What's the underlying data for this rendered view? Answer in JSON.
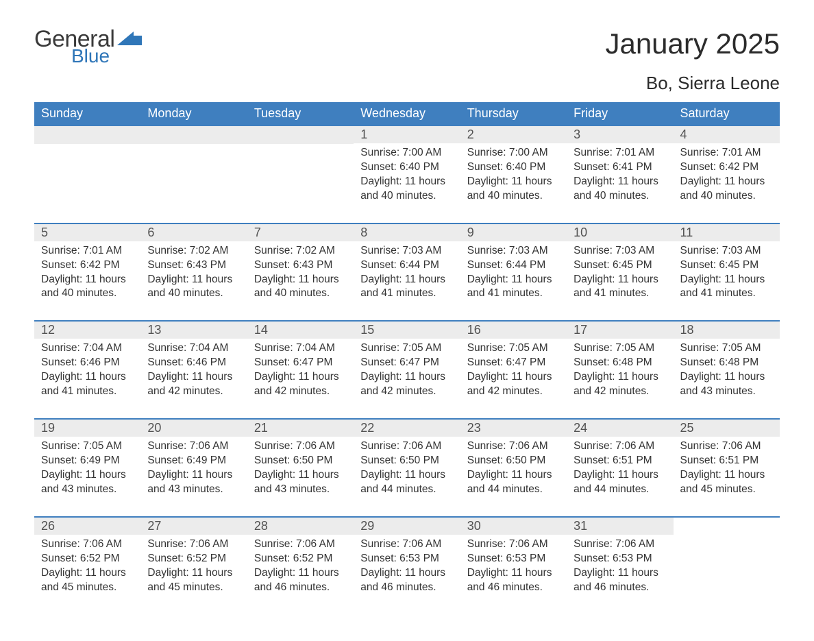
{
  "logo": {
    "word1": "General",
    "word2": "Blue",
    "icon_color": "#2f76b8"
  },
  "title": "January 2025",
  "subtitle": "Bo, Sierra Leone",
  "header_bg": "#3f7fbf",
  "header_fg": "#ffffff",
  "daynum_bg": "#ececec",
  "row_divider_color": "#3f7fbf",
  "weekdays": [
    "Sunday",
    "Monday",
    "Tuesday",
    "Wednesday",
    "Thursday",
    "Friday",
    "Saturday"
  ],
  "weeks": [
    [
      null,
      null,
      null,
      {
        "n": 1,
        "sunrise": "7:00 AM",
        "sunset": "6:40 PM",
        "daylight": "11 hours and 40 minutes."
      },
      {
        "n": 2,
        "sunrise": "7:00 AM",
        "sunset": "6:40 PM",
        "daylight": "11 hours and 40 minutes."
      },
      {
        "n": 3,
        "sunrise": "7:01 AM",
        "sunset": "6:41 PM",
        "daylight": "11 hours and 40 minutes."
      },
      {
        "n": 4,
        "sunrise": "7:01 AM",
        "sunset": "6:42 PM",
        "daylight": "11 hours and 40 minutes."
      }
    ],
    [
      {
        "n": 5,
        "sunrise": "7:01 AM",
        "sunset": "6:42 PM",
        "daylight": "11 hours and 40 minutes."
      },
      {
        "n": 6,
        "sunrise": "7:02 AM",
        "sunset": "6:43 PM",
        "daylight": "11 hours and 40 minutes."
      },
      {
        "n": 7,
        "sunrise": "7:02 AM",
        "sunset": "6:43 PM",
        "daylight": "11 hours and 40 minutes."
      },
      {
        "n": 8,
        "sunrise": "7:03 AM",
        "sunset": "6:44 PM",
        "daylight": "11 hours and 41 minutes."
      },
      {
        "n": 9,
        "sunrise": "7:03 AM",
        "sunset": "6:44 PM",
        "daylight": "11 hours and 41 minutes."
      },
      {
        "n": 10,
        "sunrise": "7:03 AM",
        "sunset": "6:45 PM",
        "daylight": "11 hours and 41 minutes."
      },
      {
        "n": 11,
        "sunrise": "7:03 AM",
        "sunset": "6:45 PM",
        "daylight": "11 hours and 41 minutes."
      }
    ],
    [
      {
        "n": 12,
        "sunrise": "7:04 AM",
        "sunset": "6:46 PM",
        "daylight": "11 hours and 41 minutes."
      },
      {
        "n": 13,
        "sunrise": "7:04 AM",
        "sunset": "6:46 PM",
        "daylight": "11 hours and 42 minutes."
      },
      {
        "n": 14,
        "sunrise": "7:04 AM",
        "sunset": "6:47 PM",
        "daylight": "11 hours and 42 minutes."
      },
      {
        "n": 15,
        "sunrise": "7:05 AM",
        "sunset": "6:47 PM",
        "daylight": "11 hours and 42 minutes."
      },
      {
        "n": 16,
        "sunrise": "7:05 AM",
        "sunset": "6:47 PM",
        "daylight": "11 hours and 42 minutes."
      },
      {
        "n": 17,
        "sunrise": "7:05 AM",
        "sunset": "6:48 PM",
        "daylight": "11 hours and 42 minutes."
      },
      {
        "n": 18,
        "sunrise": "7:05 AM",
        "sunset": "6:48 PM",
        "daylight": "11 hours and 43 minutes."
      }
    ],
    [
      {
        "n": 19,
        "sunrise": "7:05 AM",
        "sunset": "6:49 PM",
        "daylight": "11 hours and 43 minutes."
      },
      {
        "n": 20,
        "sunrise": "7:06 AM",
        "sunset": "6:49 PM",
        "daylight": "11 hours and 43 minutes."
      },
      {
        "n": 21,
        "sunrise": "7:06 AM",
        "sunset": "6:50 PM",
        "daylight": "11 hours and 43 minutes."
      },
      {
        "n": 22,
        "sunrise": "7:06 AM",
        "sunset": "6:50 PM",
        "daylight": "11 hours and 44 minutes."
      },
      {
        "n": 23,
        "sunrise": "7:06 AM",
        "sunset": "6:50 PM",
        "daylight": "11 hours and 44 minutes."
      },
      {
        "n": 24,
        "sunrise": "7:06 AM",
        "sunset": "6:51 PM",
        "daylight": "11 hours and 44 minutes."
      },
      {
        "n": 25,
        "sunrise": "7:06 AM",
        "sunset": "6:51 PM",
        "daylight": "11 hours and 45 minutes."
      }
    ],
    [
      {
        "n": 26,
        "sunrise": "7:06 AM",
        "sunset": "6:52 PM",
        "daylight": "11 hours and 45 minutes."
      },
      {
        "n": 27,
        "sunrise": "7:06 AM",
        "sunset": "6:52 PM",
        "daylight": "11 hours and 45 minutes."
      },
      {
        "n": 28,
        "sunrise": "7:06 AM",
        "sunset": "6:52 PM",
        "daylight": "11 hours and 46 minutes."
      },
      {
        "n": 29,
        "sunrise": "7:06 AM",
        "sunset": "6:53 PM",
        "daylight": "11 hours and 46 minutes."
      },
      {
        "n": 30,
        "sunrise": "7:06 AM",
        "sunset": "6:53 PM",
        "daylight": "11 hours and 46 minutes."
      },
      {
        "n": 31,
        "sunrise": "7:06 AM",
        "sunset": "6:53 PM",
        "daylight": "11 hours and 46 minutes."
      },
      null
    ]
  ],
  "labels": {
    "sunrise": "Sunrise:",
    "sunset": "Sunset:",
    "daylight": "Daylight:"
  }
}
